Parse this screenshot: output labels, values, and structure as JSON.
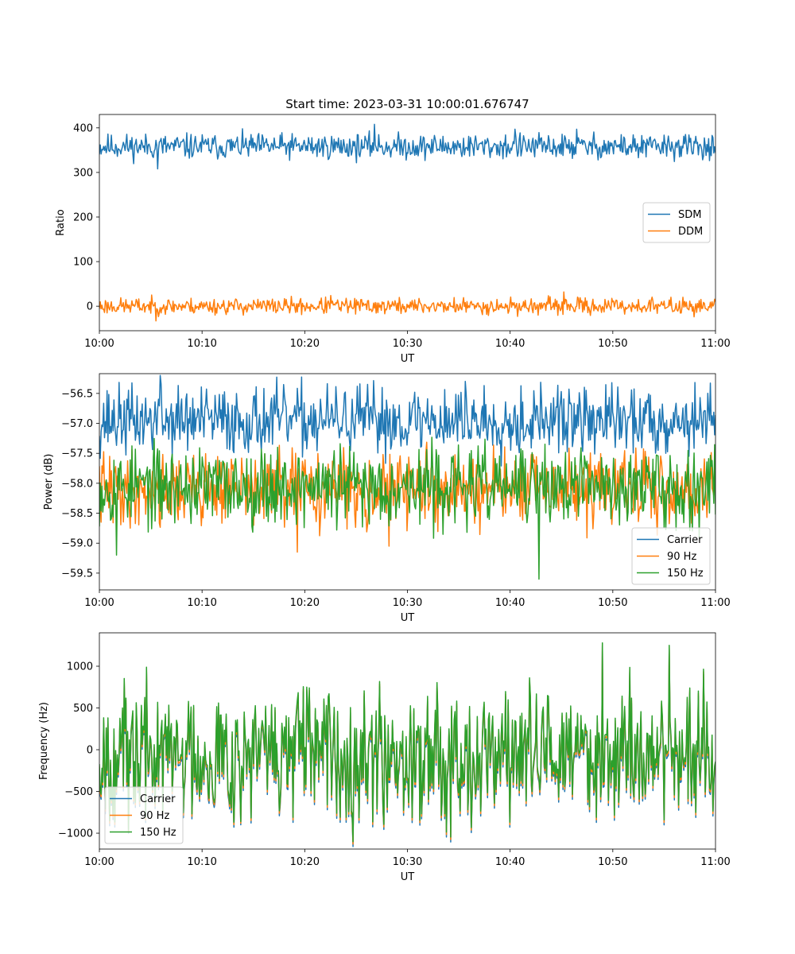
{
  "figure": {
    "title": "Start time: 2023-03-31 10:00:01.676747"
  },
  "colors": {
    "blue": "#1f77b4",
    "orange": "#ff7f0e",
    "green": "#2ca02c",
    "axes": "#000000",
    "legend_border": "#cccccc"
  },
  "chart_data": [
    {
      "type": "line",
      "title": "Start time: 2023-03-31 10:00:01.676747",
      "xlabel": "UT",
      "ylabel": "Ratio",
      "x_ticks": [
        "10:00",
        "10:10",
        "10:20",
        "10:30",
        "10:40",
        "10:50",
        "11:00"
      ],
      "xlim_minutes": [
        0,
        60
      ],
      "ylim": [
        -55,
        430
      ],
      "y_ticks": [
        0,
        100,
        200,
        300,
        400
      ],
      "y_tick_labels": [
        "0",
        "100",
        "200",
        "300",
        "400"
      ],
      "legend": "center-right",
      "grid": false,
      "series": [
        {
          "name": "SDM",
          "color": "#1f77b4",
          "mean": 358,
          "amp": 14,
          "noise_seed": 11,
          "spikes": [
            [
              5.7,
              308
            ],
            [
              26.8,
              408
            ],
            [
              40.5,
              397
            ],
            [
              46.5,
              397
            ],
            [
              52.5,
              333
            ]
          ]
        },
        {
          "name": "DDM",
          "color": "#ff7f0e",
          "mean": 0,
          "amp": 9,
          "noise_seed": 23,
          "spikes": [
            [
              5.5,
              -33
            ],
            [
              45.2,
              32
            ],
            [
              22.5,
              24
            ]
          ]
        }
      ]
    },
    {
      "type": "line",
      "title": "",
      "xlabel": "UT",
      "ylabel": "Power (dB)",
      "x_ticks": [
        "10:00",
        "10:10",
        "10:20",
        "10:30",
        "10:40",
        "10:50",
        "11:00"
      ],
      "xlim_minutes": [
        0,
        60
      ],
      "ylim": [
        -59.78,
        -56.17
      ],
      "y_ticks": [
        -59.5,
        -59.0,
        -58.5,
        -58.0,
        -57.5,
        -57.0,
        -56.5
      ],
      "y_tick_labels": [
        "−59.5",
        "−59.0",
        "−58.5",
        "−58.0",
        "−57.5",
        "−57.0",
        "−56.5"
      ],
      "legend": "lower-right",
      "grid": false,
      "series": [
        {
          "name": "Carrier",
          "color": "#1f77b4",
          "mean": -56.95,
          "amp": 0.28,
          "noise_seed": 37,
          "spikes": [
            [
              5.9,
              -56.2
            ],
            [
              26.1,
              -56.35
            ],
            [
              35.6,
              -56.3
            ]
          ]
        },
        {
          "name": "90 Hz",
          "color": "#ff7f0e",
          "mean": -58.1,
          "amp": 0.3,
          "noise_seed": 41,
          "spikes": [
            [
              19.3,
              -59.15
            ],
            [
              28.2,
              -59.05
            ]
          ]
        },
        {
          "name": "150 Hz",
          "color": "#2ca02c",
          "mean": -58.05,
          "amp": 0.32,
          "noise_seed": 53,
          "spikes": [
            [
              42.8,
              -59.6
            ],
            [
              1.7,
              -59.2
            ]
          ]
        }
      ]
    },
    {
      "type": "line",
      "title": "",
      "xlabel": "UT",
      "ylabel": "Frequency (Hz)",
      "x_ticks": [
        "10:00",
        "10:10",
        "10:20",
        "10:30",
        "10:40",
        "10:50",
        "11:00"
      ],
      "xlim_minutes": [
        0,
        60
      ],
      "ylim": [
        -1190,
        1400
      ],
      "y_ticks": [
        -1000,
        -500,
        0,
        500,
        1000
      ],
      "y_tick_labels": [
        "−1000",
        "−500",
        "0",
        "500",
        "1000"
      ],
      "legend": "lower-left",
      "grid": false,
      "series": [
        {
          "name": "Carrier",
          "color": "#1f77b4",
          "mean": -90,
          "amp": 380,
          "noise_seed": 67,
          "offset": -60,
          "spikes": [
            [
              49.0,
              1240
            ],
            [
              2.8,
              -1000
            ],
            [
              55.5,
              1200
            ],
            [
              13.8,
              -900
            ]
          ]
        },
        {
          "name": "90 Hz",
          "color": "#ff7f0e",
          "mean": -60,
          "amp": 380,
          "noise_seed": 67,
          "offset": -30,
          "spikes": [
            [
              49.0,
              1260
            ],
            [
              2.8,
              -980
            ],
            [
              55.5,
              1220
            ],
            [
              13.8,
              -880
            ]
          ]
        },
        {
          "name": "150 Hz",
          "color": "#2ca02c",
          "mean": -30,
          "amp": 380,
          "noise_seed": 67,
          "offset": 0,
          "spikes": [
            [
              49.0,
              1280
            ],
            [
              2.8,
              -960
            ],
            [
              55.5,
              1250
            ],
            [
              13.8,
              -860
            ]
          ]
        }
      ]
    }
  ]
}
